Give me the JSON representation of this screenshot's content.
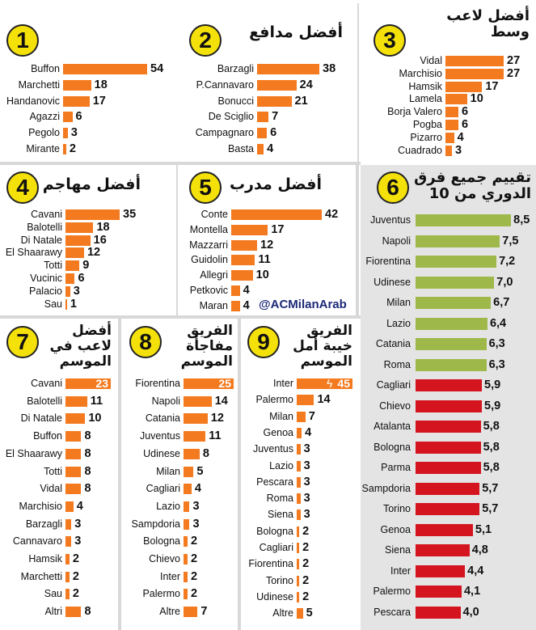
{
  "watermark": "@ACMilanArab",
  "colors": {
    "accent": "#f47a1f",
    "green": "#9eb94a",
    "red": "#d4141e",
    "badge": "#f5e10a",
    "panel_gray": "#e4e4e4"
  },
  "chart_data": [
    {
      "type": "bar",
      "number": "1",
      "title": "أفضل حارس",
      "categories": [
        "Buffon",
        "Marchetti",
        "Handanovic",
        "Agazzi",
        "Pegolo",
        "Mirante"
      ],
      "values": [
        54,
        18,
        17,
        6,
        3,
        2
      ]
    },
    {
      "type": "bar",
      "number": "2",
      "title": "أفضل مدافع",
      "categories": [
        "Barzagli",
        "P.Cannavaro",
        "Bonucci",
        "De Sciglio",
        "Campagnaro",
        "Basta"
      ],
      "values": [
        38,
        24,
        21,
        7,
        6,
        4
      ]
    },
    {
      "type": "bar",
      "number": "3",
      "title": "أفضل لاعب\nوسط",
      "categories": [
        "Vidal",
        "Marchisio",
        "Hamsik",
        "Lamela",
        "Borja Valero",
        "Pogba",
        "Pizarro",
        "Cuadrado"
      ],
      "values": [
        27,
        27,
        17,
        10,
        6,
        6,
        4,
        3
      ]
    },
    {
      "type": "bar",
      "number": "4",
      "title": "أفضل مهاجم",
      "categories": [
        "Cavani",
        "Balotelli",
        "Di Natale",
        "El Shaarawy",
        "Totti",
        "Vucinic",
        "Palacio",
        "Sau"
      ],
      "values": [
        35,
        18,
        16,
        12,
        9,
        6,
        3,
        1
      ]
    },
    {
      "type": "bar",
      "number": "5",
      "title": "أفضل مدرب",
      "categories": [
        "Conte",
        "Montella",
        "Mazzarri",
        "Guidolin",
        "Allegri",
        "Petkovic",
        "Maran"
      ],
      "values": [
        42,
        17,
        12,
        11,
        10,
        4,
        4
      ]
    },
    {
      "type": "bar",
      "number": "6",
      "title": "تقييم جميع فرق\nالدوري من 10",
      "categories": [
        "Juventus",
        "Napoli",
        "Fiorentina",
        "Udinese",
        "Milan",
        "Lazio",
        "Catania",
        "Roma",
        "Cagliari",
        "Chievo",
        "Atalanta",
        "Bologna",
        "Parma",
        "Sampdoria",
        "Torino",
        "Genoa",
        "Siena",
        "Inter",
        "Palermo",
        "Pescara"
      ],
      "values": [
        "8,5",
        "7,5",
        "7,2",
        "7,0",
        "6,7",
        "6,4",
        "6,3",
        "6,3",
        "5,9",
        "5,9",
        "5,8",
        "5,8",
        "5,8",
        "5,7",
        "5,7",
        "5,1",
        "4,8",
        "4,4",
        "4,1",
        "4,0"
      ],
      "numeric": [
        8.5,
        7.5,
        7.2,
        7.0,
        6.7,
        6.4,
        6.3,
        6.3,
        5.9,
        5.9,
        5.8,
        5.8,
        5.8,
        5.7,
        5.7,
        5.1,
        4.8,
        4.4,
        4.1,
        4.0
      ],
      "xlim": [
        0,
        10
      ]
    },
    {
      "type": "bar",
      "number": "7",
      "title": "أفضل\nلاعب في\nالموسم",
      "categories": [
        "Cavani",
        "Balotelli",
        "Di Natale",
        "Buffon",
        "El Shaarawy",
        "Totti",
        "Vidal",
        "Marchisio",
        "Barzagli",
        "Cannavaro",
        "Hamsik",
        "Marchetti",
        "Sau",
        "Altri"
      ],
      "values": [
        23,
        11,
        10,
        8,
        8,
        8,
        8,
        4,
        3,
        3,
        2,
        2,
        2,
        8
      ]
    },
    {
      "type": "bar",
      "number": "8",
      "title": "الفريق\nمفاجأة\nالموسم",
      "categories": [
        "Fiorentina",
        "Napoli",
        "Catania",
        "Juventus",
        "Udinese",
        "Milan",
        "Cagliari",
        "Lazio",
        "Sampdoria",
        "Bologna",
        "Chievo",
        "Inter",
        "Palermo",
        "Altre"
      ],
      "values": [
        25,
        14,
        12,
        11,
        8,
        5,
        4,
        3,
        3,
        2,
        2,
        2,
        2,
        7
      ]
    },
    {
      "type": "bar",
      "number": "9",
      "title": "الفريق\nخيبة أمل\nالموسم",
      "categories": [
        "Inter",
        "Palermo",
        "Milan",
        "Genoa",
        "Juventus",
        "Lazio",
        "Pescara",
        "Roma",
        "Siena",
        "Bologna",
        "Cagliari",
        "Fiorentina",
        "Torino",
        "Udinese",
        "Altre"
      ],
      "values": [
        45,
        14,
        7,
        4,
        3,
        3,
        3,
        3,
        3,
        2,
        2,
        2,
        2,
        2,
        5
      ]
    }
  ]
}
